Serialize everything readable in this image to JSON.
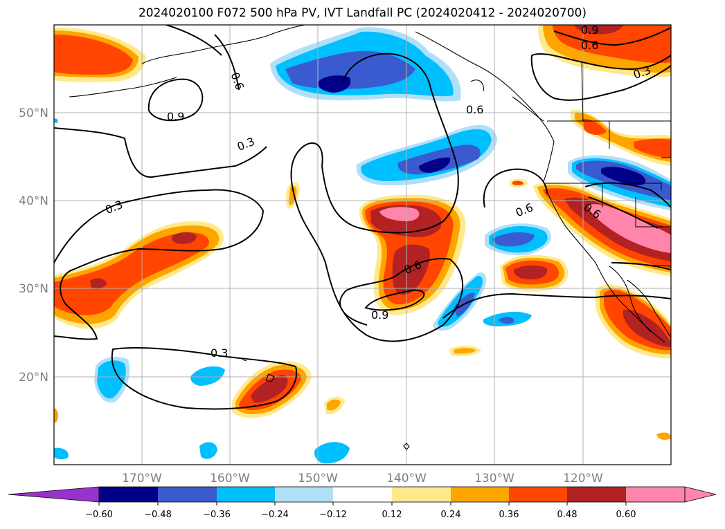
{
  "title": "2024020100 F072 500 hPa PV, IVT Landfall PC (2024020412 - 2024020700)",
  "map": {
    "lon_ticks": [
      "170°W",
      "160°W",
      "150°W",
      "140°W",
      "130°W",
      "120°W"
    ],
    "lat_ticks": [
      "50°N",
      "40°N",
      "30°N",
      "20°N"
    ],
    "gridlines": true
  },
  "contour_labels": [
    "0.9",
    "0.6",
    "0.3",
    "0.6",
    "0.3",
    "0.3",
    "0.6",
    "0.6",
    "0.6",
    "0.9",
    "0.6",
    "0.3",
    "0.3",
    "0.9"
  ],
  "colorbar": {
    "extend": "both",
    "labels": [
      "−0.60",
      "−0.48",
      "−0.36",
      "−0.24",
      "−0.12",
      "0.12",
      "0.24",
      "0.36",
      "0.48",
      "0.60"
    ],
    "colors": {
      "under": "#9932cc",
      "n060": "#00008b",
      "n048": "#3a5bcf",
      "n036": "#00bfff",
      "n024": "#b0e0f8",
      "neutral": "#ffffff",
      "p012": "#ffe98a",
      "p024": "#ffa500",
      "p036": "#ff4500",
      "p048": "#b22222",
      "over": "#ff85ad"
    }
  }
}
